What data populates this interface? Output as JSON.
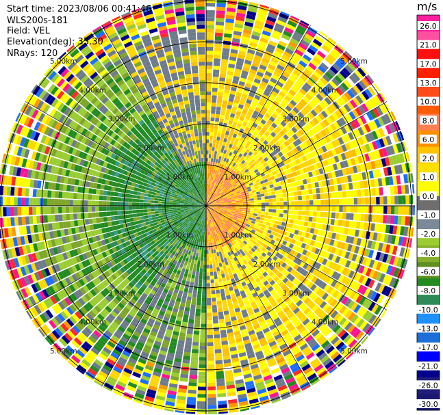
{
  "header": {
    "start_time": "Start time: 2023/08/06 00:41:46",
    "station": "WLS200s-181",
    "field": "Field: VEL",
    "elevation": "Elevation(deg): 35.30",
    "nrays": "NRays: 120"
  },
  "chart_data": {
    "type": "ppi",
    "field": "VEL",
    "units": "m/s",
    "nrays": 120,
    "range_rings_km": [
      1.0,
      2.0,
      3.0,
      4.0,
      5.0
    ],
    "ring_labels": [
      "1.00km",
      "2.00km",
      "3.00km",
      "4.00km",
      "5.00km"
    ],
    "max_range_km": 5.2,
    "spokes_deg": [
      0,
      30,
      60,
      90,
      120,
      150,
      180,
      210,
      240,
      270,
      300,
      330
    ],
    "colorbar": {
      "unit_label": "m/s",
      "ticks": [
        "26.0",
        "21.0",
        "17.0",
        "13.0",
        "10.0",
        "8.0",
        "6.0",
        "2.0",
        "1.0",
        "0.0",
        "-1.0",
        "-2.0",
        "-4.0",
        "-6.0",
        "-8.0",
        "-10.0",
        "-13.0",
        "-17.0",
        "-21.0",
        "-26.0",
        "-30.0"
      ],
      "colors": [
        "#ff1f9f",
        "#ff4f9f",
        "#ff0f0f",
        "#ff2000",
        "#ff4a1a",
        "#ff5e00",
        "#ff7f50",
        "#ff9000",
        "#ffc400",
        "#ffe000",
        "#ffff00",
        "#6e6e6e",
        "#7a8a99",
        "#9acd32",
        "#86b02c",
        "#5f8f1f",
        "#228b22",
        "#2e8b57",
        "#1e90ff",
        "#1c6fd6",
        "#0000ff",
        "#00008b",
        "#1f1f7a",
        "#191970"
      ]
    }
  }
}
